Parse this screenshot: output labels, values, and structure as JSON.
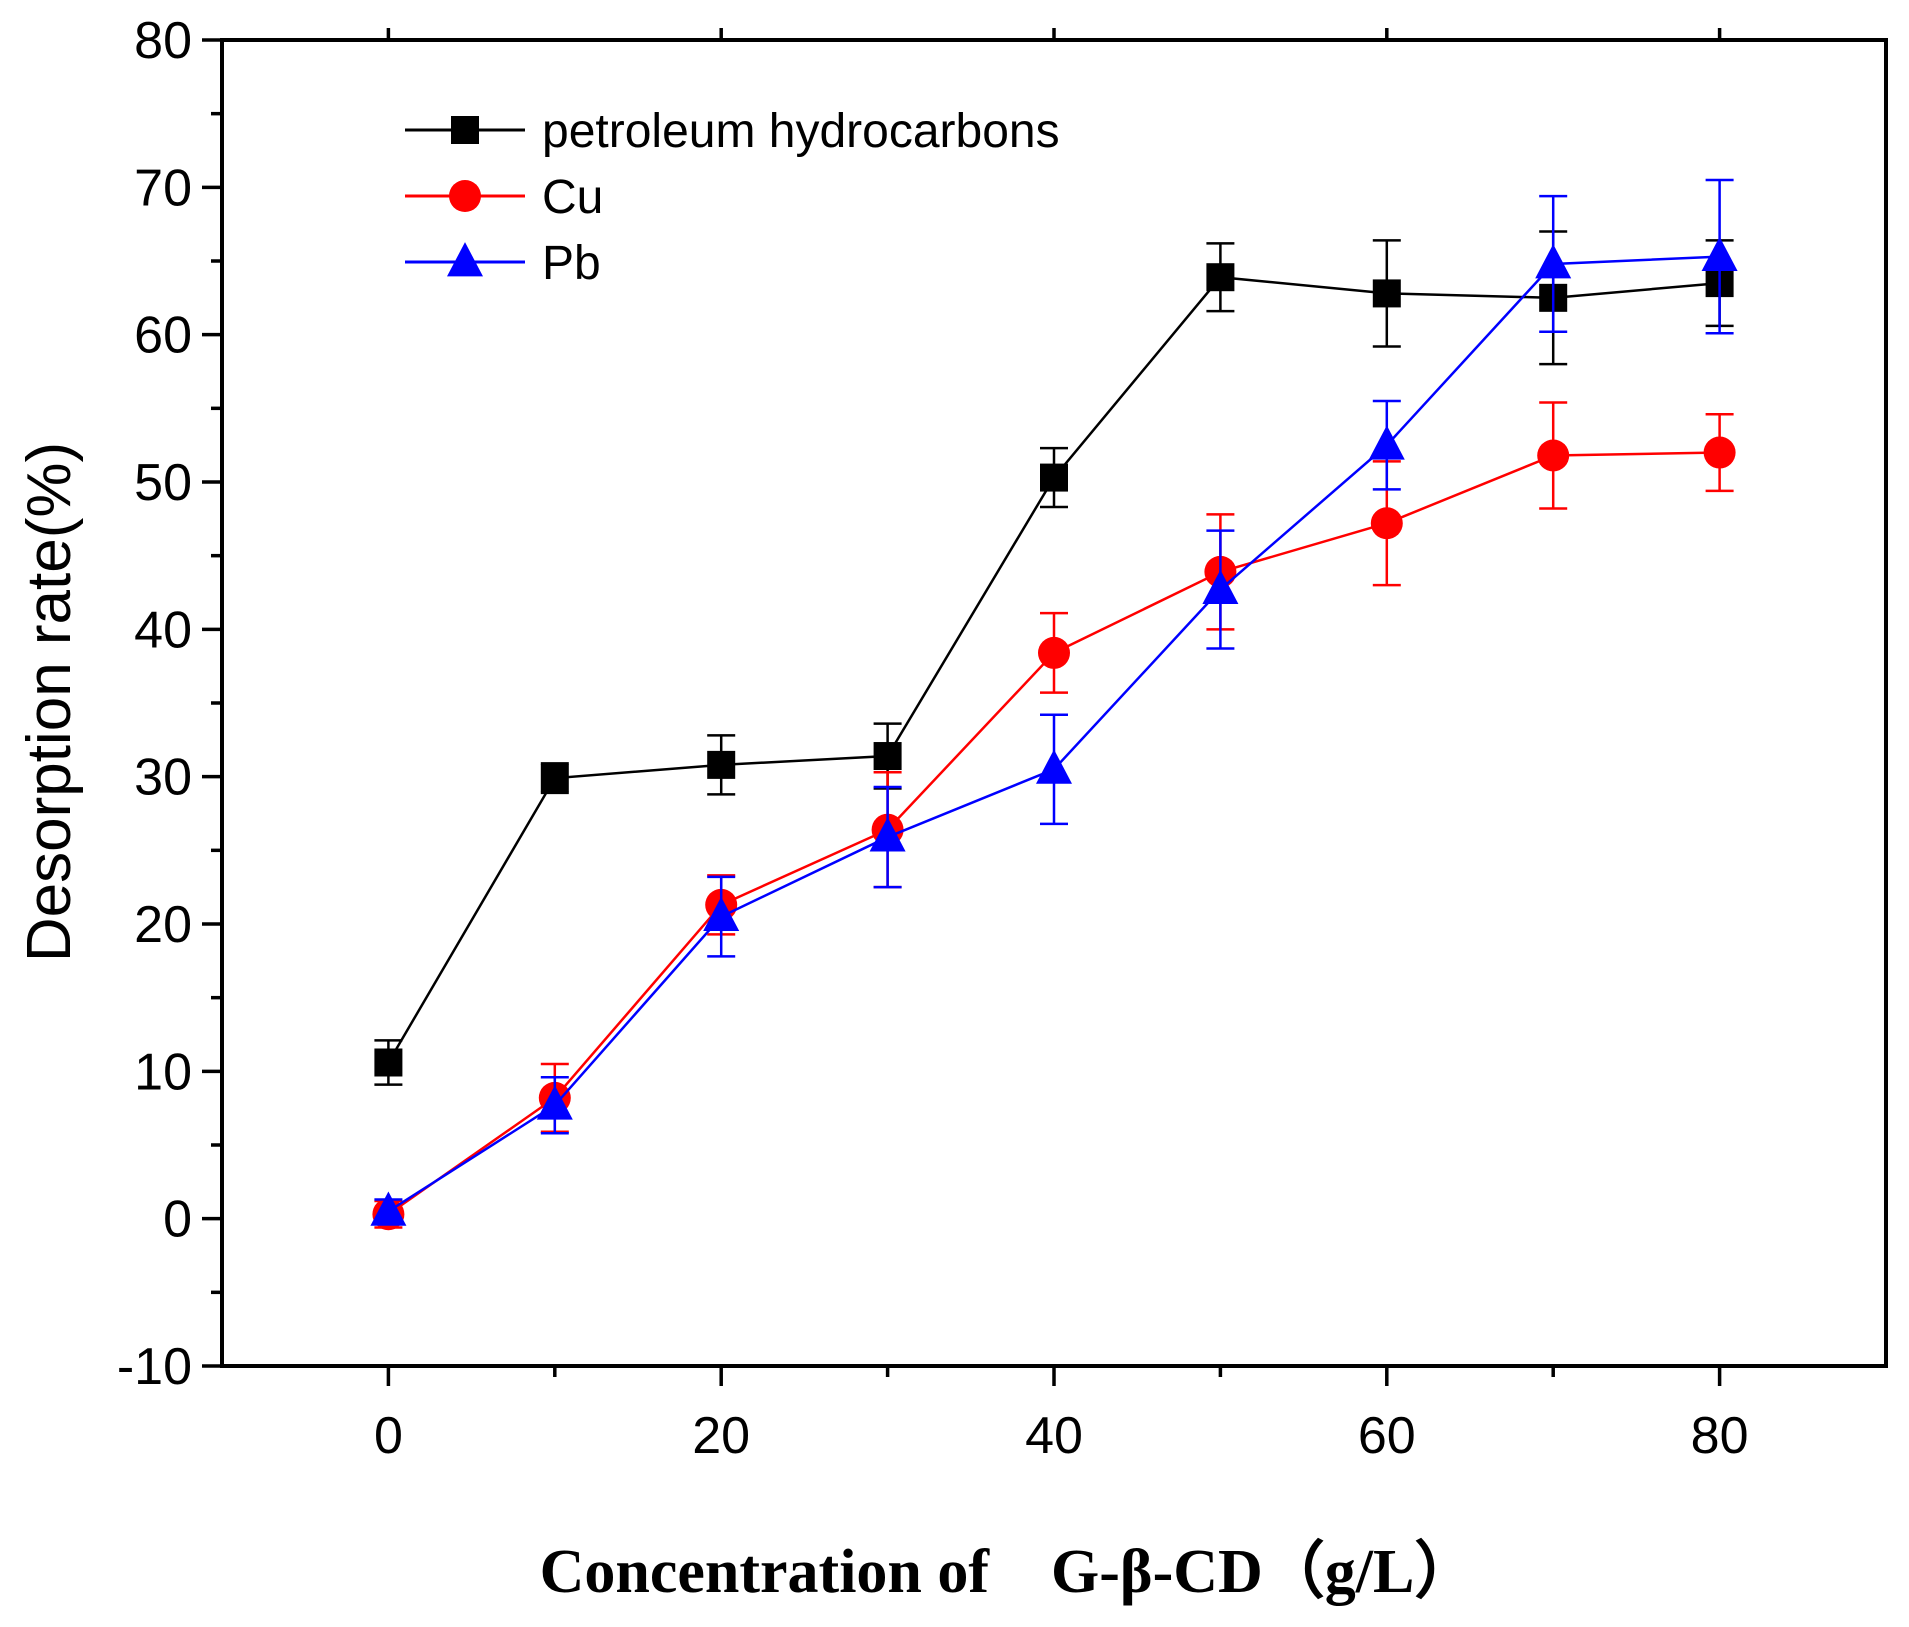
{
  "chart_data": {
    "type": "line",
    "title": "",
    "xlabel": "Concentration of　G-β-CD（g/L）",
    "ylabel": "Desorption rate(%)",
    "xlim": [
      -10,
      90
    ],
    "ylim": [
      -10,
      80
    ],
    "x_ticks": [
      0,
      20,
      40,
      60,
      80
    ],
    "y_ticks": [
      -10,
      0,
      10,
      20,
      30,
      40,
      50,
      60,
      70,
      80
    ],
    "grid": false,
    "legend_position": "top-left",
    "x": [
      0,
      10,
      20,
      30,
      40,
      50,
      60,
      70,
      80
    ],
    "series": [
      {
        "name": "petroleum hydrocarbons",
        "color": "#000000",
        "marker": "square",
        "values": [
          10.6,
          29.9,
          30.8,
          31.4,
          50.3,
          63.9,
          62.8,
          62.5,
          63.5
        ],
        "errors": [
          1.5,
          1.0,
          2.0,
          2.2,
          2.0,
          2.3,
          3.6,
          4.5,
          2.9
        ]
      },
      {
        "name": "Cu",
        "color": "#ff0000",
        "marker": "circle",
        "values": [
          0.3,
          8.2,
          21.3,
          26.4,
          38.4,
          43.9,
          47.2,
          51.8,
          52.0
        ],
        "errors": [
          0.9,
          2.3,
          2.0,
          3.9,
          2.7,
          3.9,
          4.2,
          3.6,
          2.6
        ]
      },
      {
        "name": "Pb",
        "color": "#0000ff",
        "marker": "triangle",
        "values": [
          0.5,
          7.7,
          20.5,
          25.9,
          30.5,
          42.7,
          52.5,
          64.8,
          65.3
        ],
        "errors": [
          0.8,
          1.9,
          2.7,
          3.4,
          3.7,
          4.0,
          3.0,
          4.6,
          5.2
        ]
      }
    ]
  }
}
